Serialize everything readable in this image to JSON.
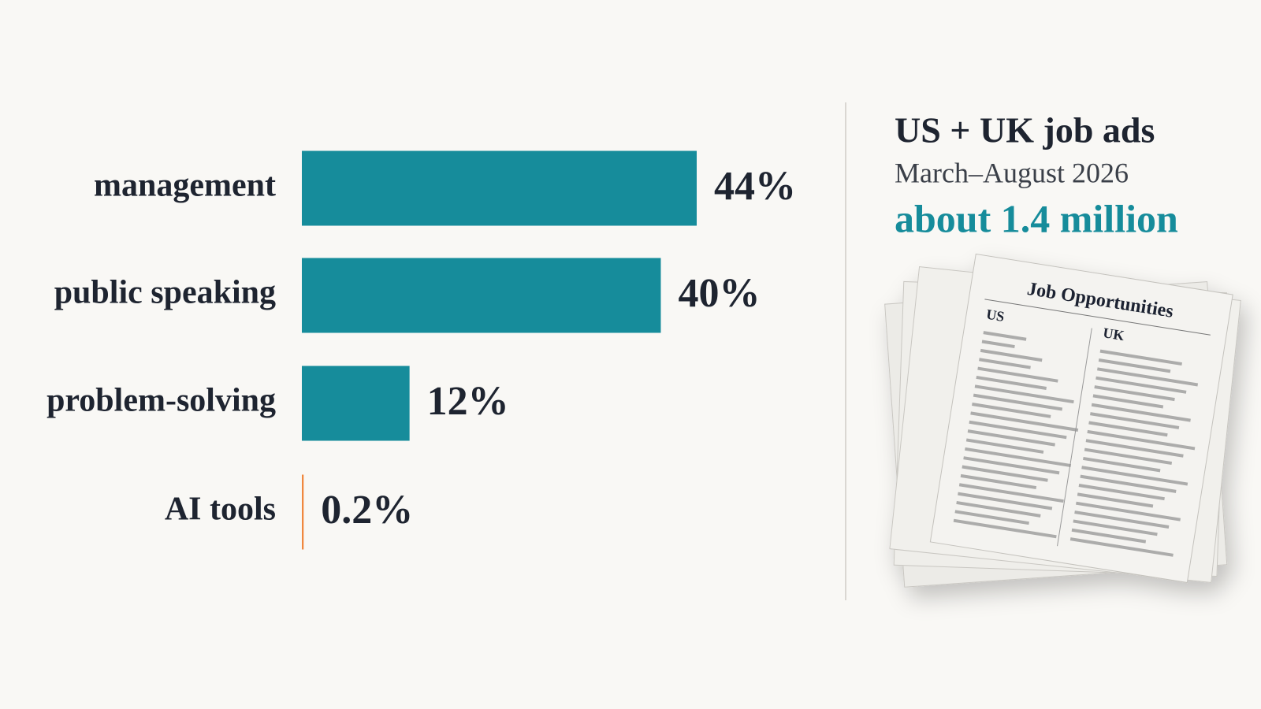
{
  "chart_data": {
    "type": "hbar",
    "categories": [
      "management",
      "public speaking",
      "problem-solving",
      "AI tools"
    ],
    "values": [
      44,
      40,
      12,
      0.2
    ],
    "value_labels": [
      "44%",
      "40%",
      "12%",
      "0.2%"
    ],
    "colors": [
      "#168c9b",
      "#168c9b",
      "#168c9b",
      "#f0883e"
    ],
    "xlim": [
      0,
      44
    ]
  },
  "panel": {
    "title": "US + UK job ads",
    "subtitle": "March–August 2026",
    "highlight": "about 1.4 million"
  },
  "illustration": {
    "heading": "Job Opportunities",
    "columns": [
      "US",
      "UK"
    ]
  }
}
